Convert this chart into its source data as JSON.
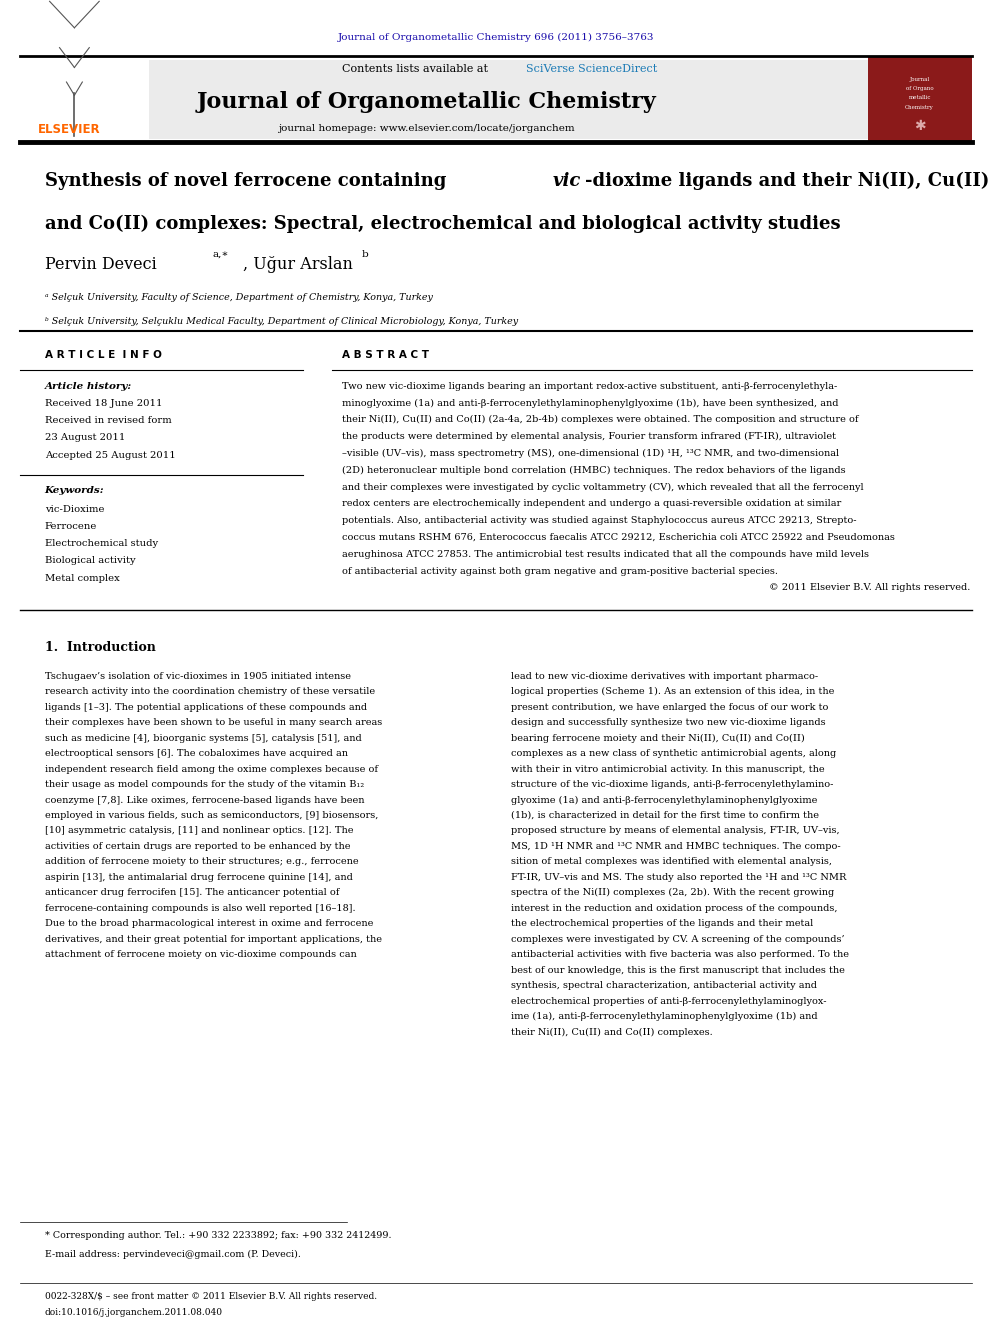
{
  "page_width": 9.92,
  "page_height": 13.23,
  "bg_color": "#ffffff",
  "top_journal_ref": "Journal of Organometallic Chemistry 696 (2011) 3756–3763",
  "top_journal_ref_color": "#1a0dab",
  "header_bg": "#e8e8e8",
  "journal_name": "Journal of Organometallic Chemistry",
  "sciverse_color": "#1a7ab5",
  "journal_homepage": "journal homepage: www.elsevier.com/locate/jorganchem",
  "elsevier_color": "#ff6600",
  "kw1": "vic-Dioxime",
  "kw2": "Ferrocene",
  "kw3": "Electrochemical study",
  "kw4": "Biological activity",
  "kw5": "Metal complex",
  "abstract_text": "Two new vic-dioxime ligands bearing an important redox-active substituent, anti-β-ferrocenylethyla-\nminoglyoxime (1a) and anti-β-ferrocenylethylaminophenylglyoxime (1b), have been synthesized, and\ntheir Ni(II), Cu(II) and Co(II) (2a-4a, 2b-4b) complexes were obtained. The composition and structure of\nthe products were determined by elemental analysis, Fourier transform infrared (FT-IR), ultraviolet\n–visible (UV–vis), mass spectrometry (MS), one-dimensional (1D) ¹H, ¹³C NMR, and two-dimensional\n(2D) heteronuclear multiple bond correlation (HMBC) techniques. The redox behaviors of the ligands\nand their complexes were investigated by cyclic voltammetry (CV), which revealed that all the ferrocenyl\nredox centers are electrochemically independent and undergo a quasi-reversible oxidation at similar\npotentials. Also, antibacterial activity was studied against Staphylococcus aureus ATCC 29213, Strepto-\ncoccus mutans RSHM 676, Enterococcus faecalis ATCC 29212, Escherichia coli ATCC 25922 and Pseudomonas\naerughinosa ATCC 27853. The antimicrobial test results indicated that all the compounds have mild levels\nof antibacterial activity against both gram negative and gram-positive bacterial species.\n© 2011 Elsevier B.V. All rights reserved.",
  "intro_col1": "Tschugaev’s isolation of vic-dioximes in 1905 initiated intense\nresearch activity into the coordination chemistry of these versatile\nligands [1–3]. The potential applications of these compounds and\ntheir complexes have been shown to be useful in many search areas\nsuch as medicine [4], bioorganic systems [5], catalysis [51], and\nelectrooptical sensors [6]. The cobaloximes have acquired an\nindependent research field among the oxime complexes because of\ntheir usage as model compounds for the study of the vitamin B₁₂\ncoenzyme [7,8]. Like oximes, ferrocene-based ligands have been\nemployed in various fields, such as semiconductors, [9] biosensors,\n[10] asymmetric catalysis, [11] and nonlinear optics. [12]. The\nactivities of certain drugs are reported to be enhanced by the\naddition of ferrocene moiety to their structures; e.g., ferrocene\naspirin [13], the antimalarial drug ferrocene quinine [14], and\nanticancer drug ferrocifen [15]. The anticancer potential of\nferrocene-containing compounds is also well reported [16–18].\nDue to the broad pharmacological interest in oxime and ferrocene\nderivatives, and their great potential for important applications, the\nattachment of ferrocene moiety on vic-dioxime compounds can",
  "intro_col2": "lead to new vic-dioxime derivatives with important pharmaco-\nlogical properties (Scheme 1). As an extension of this idea, in the\npresent contribution, we have enlarged the focus of our work to\ndesign and successfully synthesize two new vic-dioxime ligands\nbearing ferrocene moiety and their Ni(II), Cu(II) and Co(II)\ncomplexes as a new class of synthetic antimicrobial agents, along\nwith their in vitro antimicrobial activity. In this manuscript, the\nstructure of the vic-dioxime ligands, anti-β-ferrocenylethylamino-\nglyoxime (1a) and anti-β-ferrocenylethylaminophenylglyoxime\n(1b), is characterized in detail for the first time to confirm the\nproposed structure by means of elemental analysis, FT-IR, UV–vis,\nMS, 1D ¹H NMR and ¹³C NMR and HMBC techniques. The compo-\nsition of metal complexes was identified with elemental analysis,\nFT-IR, UV–vis and MS. The study also reported the ¹H and ¹³C NMR\nspectra of the Ni(II) complexes (2a, 2b). With the recent growing\ninterest in the reduction and oxidation process of the compounds,\nthe electrochemical properties of the ligands and their metal\ncomplexes were investigated by CV. A screening of the compounds’\nantibacterial activities with five bacteria was also performed. To the\nbest of our knowledge, this is the first manuscript that includes the\nsynthesis, spectral characterization, antibacterial activity and\nelectrochemical properties of anti-β-ferrocenylethylaminoglyox-\nime (1a), anti-β-ferrocenylethylaminophenylglyoxime (1b) and\ntheir Ni(II), Cu(II) and Co(II) complexes.",
  "footnote1": "* Corresponding author. Tel.: +90 332 2233892; fax: +90 332 2412499.",
  "footnote2": "E-mail address: pervindeveci@gmail.com (P. Deveci).",
  "footer1": "0022-328X/$ – see front matter © 2011 Elsevier B.V. All rights reserved.",
  "footer2": "doi:10.1016/j.jorganchem.2011.08.040"
}
